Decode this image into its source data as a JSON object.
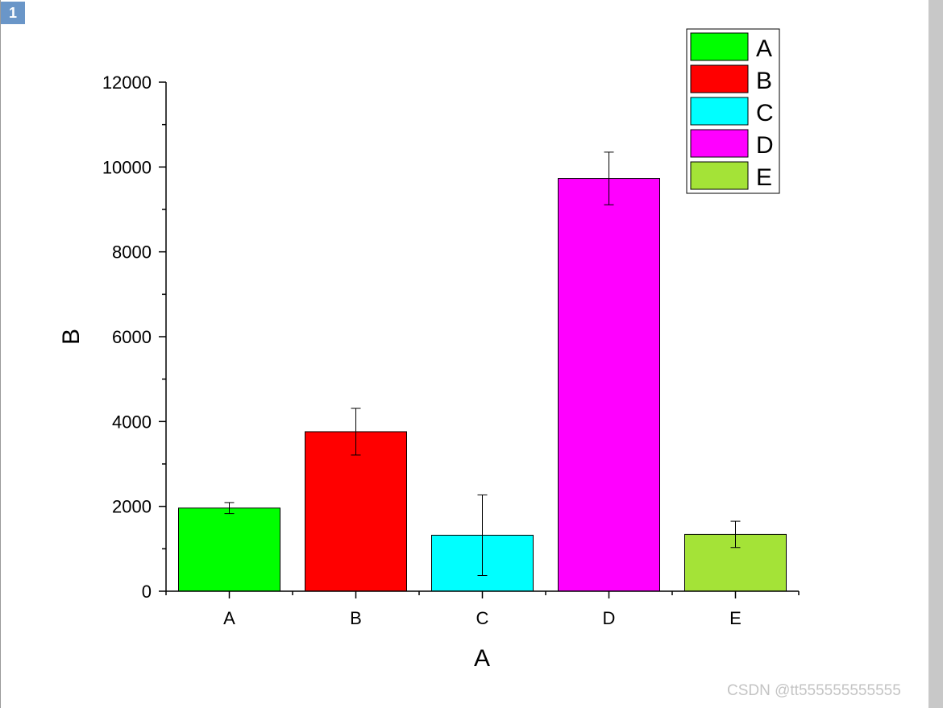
{
  "page": {
    "page_number": "1",
    "watermark": "CSDN @tt555555555555"
  },
  "chart_data": {
    "type": "bar",
    "categories": [
      "A",
      "B",
      "C",
      "D",
      "E"
    ],
    "values": [
      1960,
      3760,
      1320,
      9730,
      1340
    ],
    "errors": [
      130,
      550,
      950,
      620,
      310
    ],
    "colors": [
      "#00ff00",
      "#ff0000",
      "#00ffff",
      "#ff00ff",
      "#a4e337"
    ],
    "xlabel": "A",
    "ylabel": "B",
    "ylim": [
      0,
      12000
    ],
    "yticks": [
      0,
      2000,
      4000,
      6000,
      8000,
      10000,
      12000
    ],
    "grid": false,
    "legend": {
      "position": "top-right",
      "entries": [
        "A",
        "B",
        "C",
        "D",
        "E"
      ]
    }
  }
}
